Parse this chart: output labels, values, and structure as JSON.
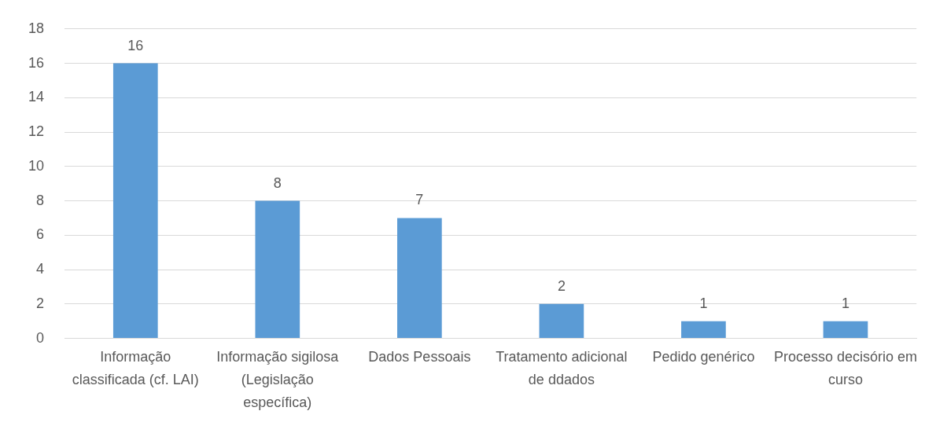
{
  "chart_data": {
    "type": "bar",
    "categories": [
      "Informação classificada (cf. LAI)",
      "Informação sigilosa (Legislação específica)",
      "Dados Pessoais",
      "Tratamento adicional de ddados",
      "Pedido genérico",
      "Processo decisório em curso"
    ],
    "values": [
      16,
      8,
      7,
      2,
      1,
      1
    ],
    "color": "#5b9bd5",
    "ylim": [
      0,
      18
    ],
    "yticks": [
      0,
      2,
      4,
      6,
      8,
      10,
      12,
      14,
      16,
      18
    ],
    "grid": "y",
    "data_labels": true
  }
}
